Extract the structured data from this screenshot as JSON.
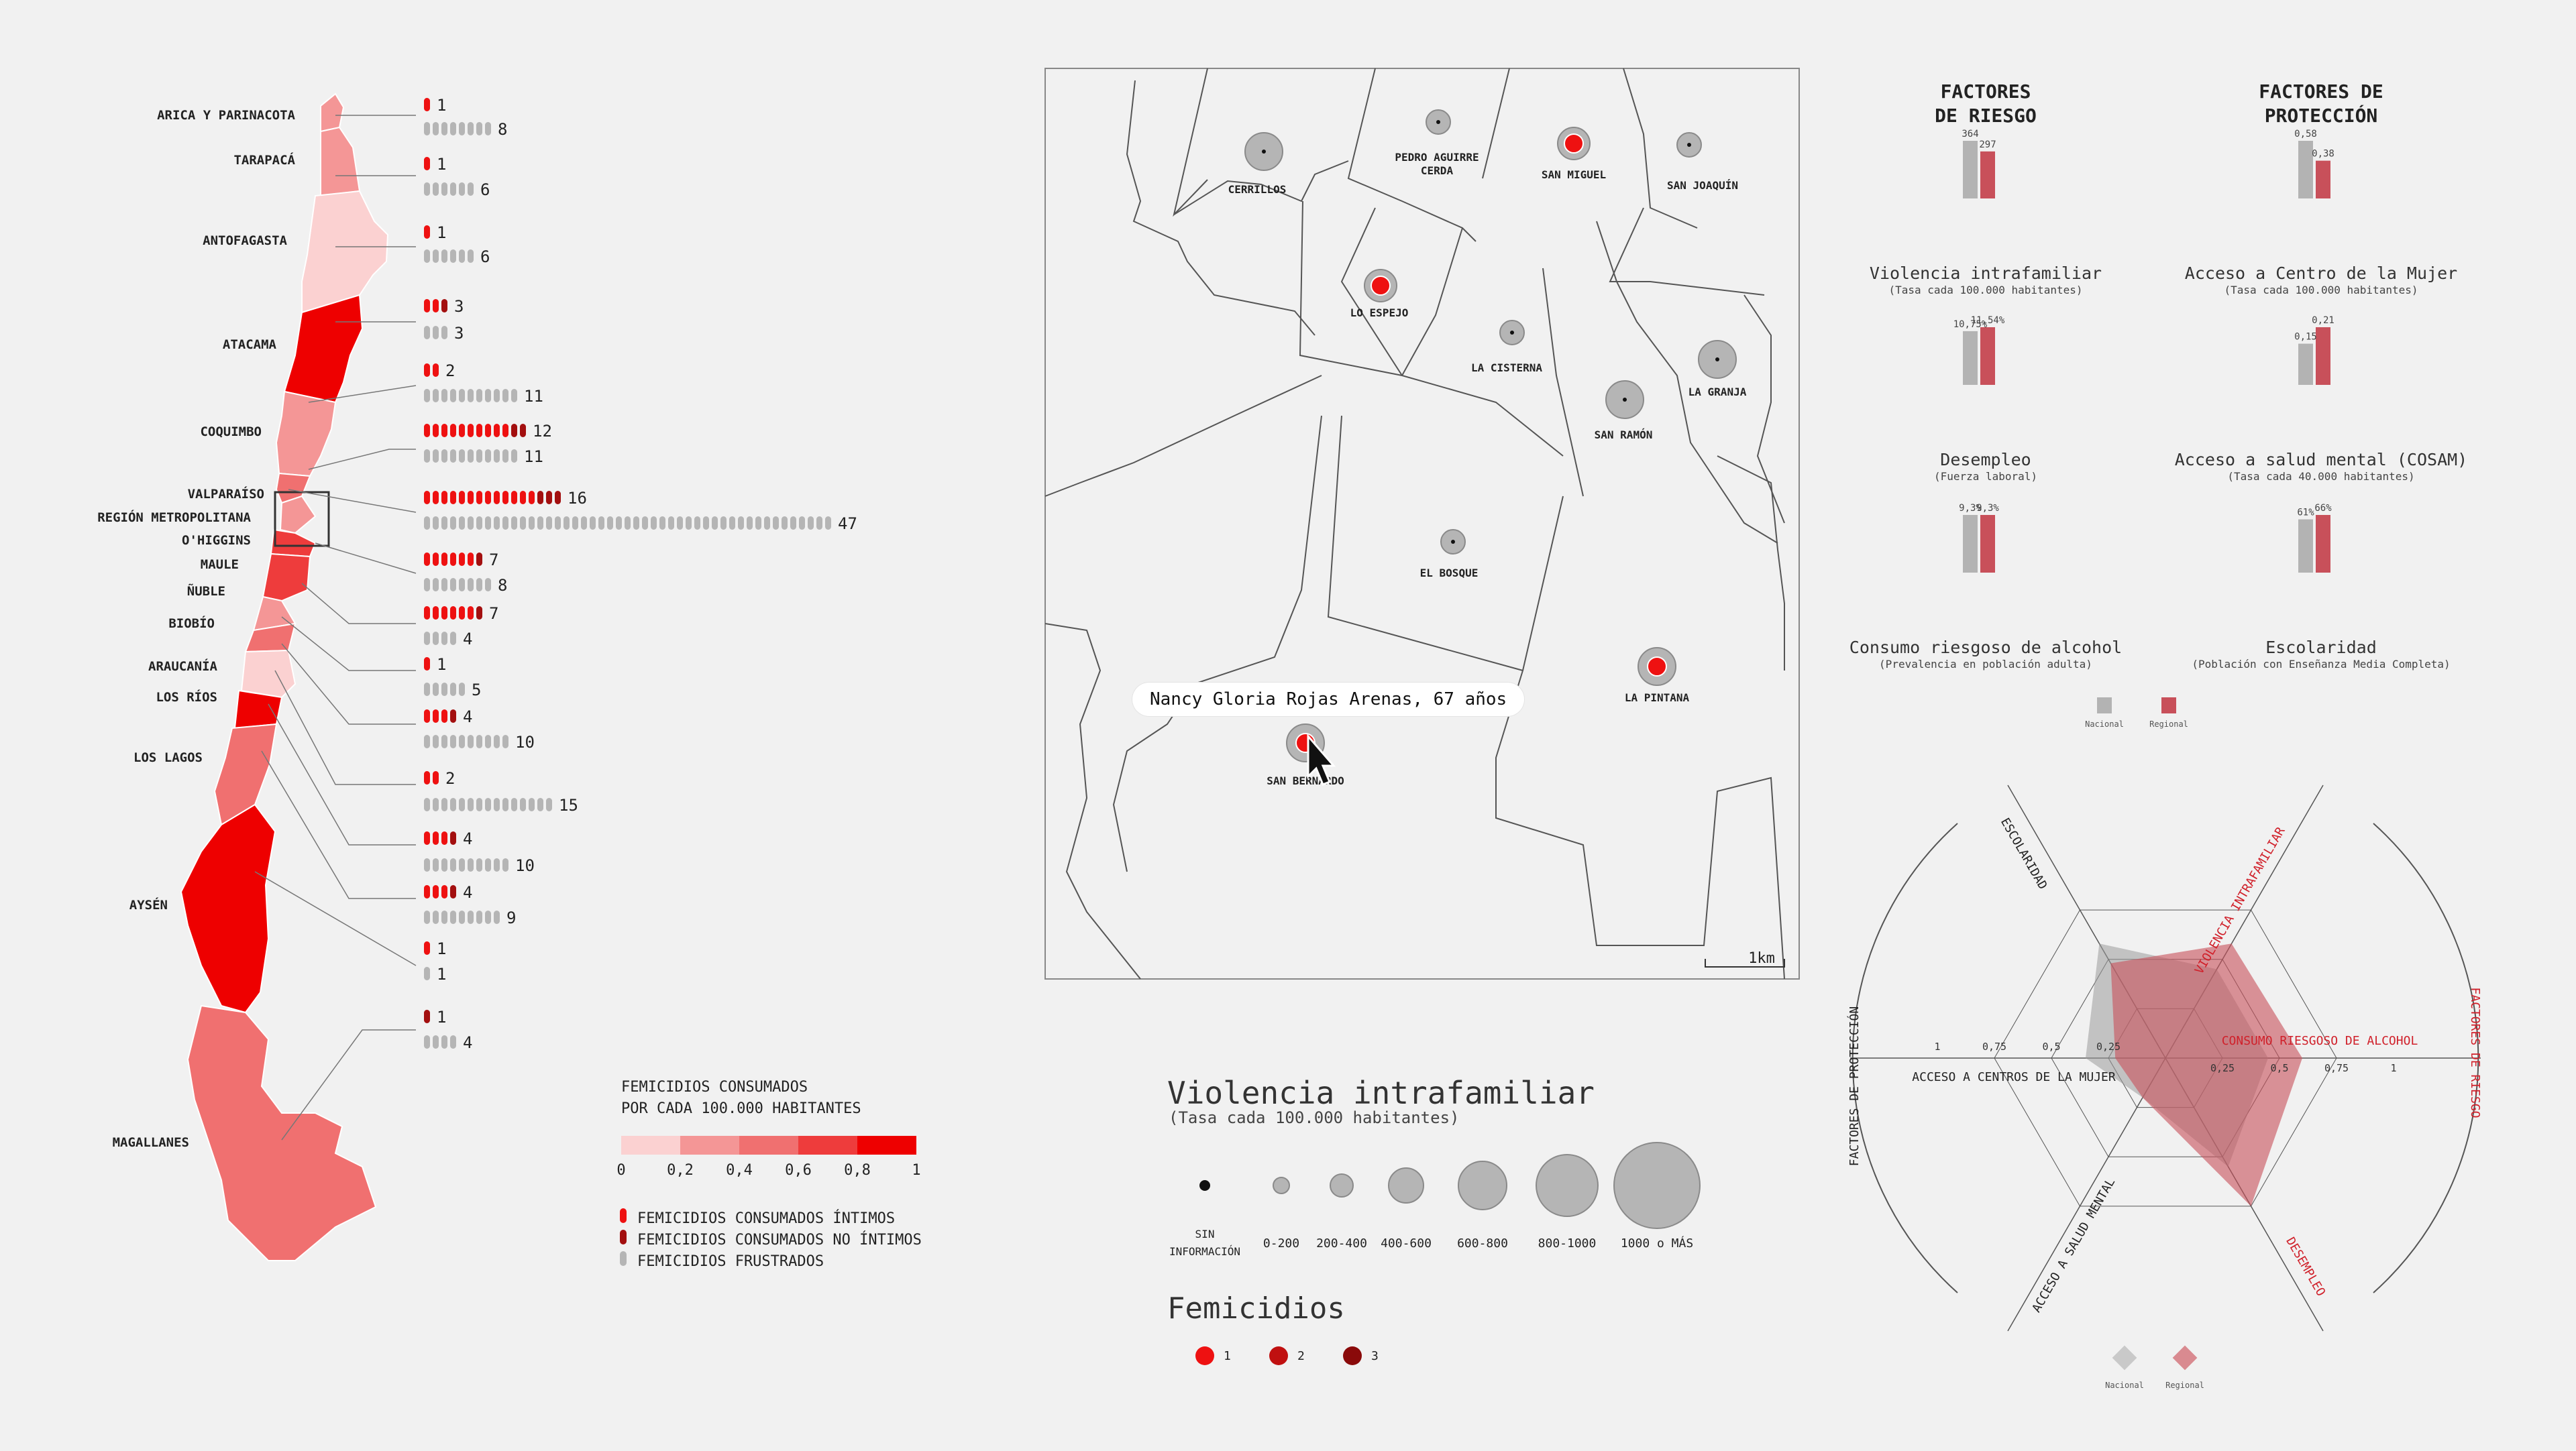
{
  "colors": {
    "accent": "#ee1111",
    "dark_red": "#a30f0f",
    "grey": "#b5b5b5",
    "regional": "#c8505a",
    "nacional": "#b3b3b3",
    "scale": [
      "#fbd1d1",
      "#f49696",
      "#f07070",
      "#ee3c3c",
      "#ee0000"
    ]
  },
  "regions": [
    {
      "name": "ARICA Y PARINACOTA",
      "intimos": 1,
      "no_intimos": 0,
      "frustrados": 8
    },
    {
      "name": "TARAPACÁ",
      "intimos": 1,
      "no_intimos": 0,
      "frustrados": 6
    },
    {
      "name": "ANTOFAGASTA",
      "intimos": 1,
      "no_intimos": 0,
      "frustrados": 6
    },
    {
      "name": "ATACAMA",
      "intimos": 2,
      "no_intimos": 1,
      "frustrados": 3
    },
    {
      "name": "COQUIMBO",
      "intimos": 2,
      "no_intimos": 0,
      "frustrados": 11
    },
    {
      "name": "VALPARAÍSO",
      "intimos": 10,
      "no_intimos": 2,
      "frustrados": 11
    },
    {
      "name": "REGIÓN METROPOLITANA",
      "intimos": 13,
      "no_intimos": 3,
      "frustrados": 47
    },
    {
      "name": "O'HIGGINS",
      "intimos": 6,
      "no_intimos": 1,
      "frustrados": 8
    },
    {
      "name": "MAULE",
      "intimos": 6,
      "no_intimos": 1,
      "frustrados": 4
    },
    {
      "name": "ÑUBLE",
      "intimos": 1,
      "no_intimos": 0,
      "frustrados": 5
    },
    {
      "name": "BIOBÍO",
      "intimos": 3,
      "no_intimos": 1,
      "frustrados": 10
    },
    {
      "name": "ARAUCANÍA",
      "intimos": 2,
      "no_intimos": 0,
      "frustrados": 15
    },
    {
      "name": "LOS RÍOS",
      "intimos": 3,
      "no_intimos": 1,
      "frustrados": 10
    },
    {
      "name": "LOS LAGOS",
      "intimos": 3,
      "no_intimos": 1,
      "frustrados": 9
    },
    {
      "name": "AYSÉN",
      "intimos": 1,
      "no_intimos": 0,
      "frustrados": 1
    },
    {
      "name": "MAGALLANES",
      "intimos": 0,
      "no_intimos": 1,
      "frustrados": 4
    }
  ],
  "region_labels": {
    "arica": "ARICA Y PARINACOTA",
    "tarapaca": "TARAPACÁ",
    "antofagasta": "ANTOFAGASTA",
    "atacama": "ATACAMA",
    "coquimbo": "COQUIMBO",
    "valparaiso": "VALPARAÍSO",
    "metropolitana": "REGIÓN METROPOLITANA",
    "ohiggins": "O'HIGGINS",
    "maule": "MAULE",
    "nuble": "ÑUBLE",
    "biobio": "BIOBÍO",
    "araucania": "ARAUCANÍA",
    "losrios": "LOS RÍOS",
    "loslagos": "LOS LAGOS",
    "aysen": "AYSÉN",
    "magallanes": "MAGALLANES"
  },
  "rate_legend": {
    "title_line1": "FEMICIDIOS CONSUMADOS",
    "title_line2": "POR CADA 100.000 HABITANTES",
    "ticks": [
      "0",
      "0,2",
      "0,4",
      "0,6",
      "0,8",
      "1"
    ]
  },
  "type_legend": {
    "intimos": "FEMICIDIOS CONSUMADOS ÍNTIMOS",
    "no_intimos": "FEMICIDIOS CONSUMADOS NO ÍNTIMOS",
    "frustrados": "FEMICIDIOS FRUSTRADOS"
  },
  "comunas": [
    {
      "name": "CERRILLOS",
      "size": "600-800",
      "femicidios": 0
    },
    {
      "name": "PEDRO AGUIRRE",
      "name2": "CERDA",
      "size": "200-400",
      "femicidios": 0
    },
    {
      "name": "SAN MIGUEL",
      "size": "400-600",
      "femicidios": 1
    },
    {
      "name": "SAN JOAQUÍN",
      "size": "200-400",
      "femicidios": 0
    },
    {
      "name": "LO ESPEJO",
      "size": "400-600",
      "femicidios": 1
    },
    {
      "name": "LA CISTERNA",
      "size": "200-400",
      "femicidios": 0
    },
    {
      "name": "SAN RAMÓN",
      "size": "600-800",
      "femicidios": 0
    },
    {
      "name": "LA GRANJA",
      "size": "600-800",
      "femicidios": 0
    },
    {
      "name": "EL BOSQUE",
      "size": "200-400",
      "femicidios": 0
    },
    {
      "name": "LA PINTANA",
      "size": "600-800",
      "femicidios": 1
    },
    {
      "name": "SAN BERNARDO",
      "size": "600-800",
      "femicidios": 1
    }
  ],
  "map": {
    "scale_label": "1km",
    "tooltip": "Nancy Gloria Rojas Arenas, 67 años"
  },
  "vif_legend": {
    "title": "Violencia intrafamiliar",
    "subtitle": "(Tasa cada 100.000 habitantes)",
    "categories": [
      "SIN INFORMACIÓN",
      "0-200",
      "200-400",
      "400-600",
      "600-800",
      "800-1000",
      "1000 o MÁS"
    ]
  },
  "fem_legend": {
    "title": "Femicidios",
    "counts": [
      "1",
      "2",
      "3"
    ]
  },
  "factors": {
    "riesgo_title": [
      "FACTORES",
      "DE RIESGO"
    ],
    "proteccion_title": [
      "FACTORES DE",
      "PROTECCIÓN"
    ],
    "charts": [
      {
        "title": "Violencia intrafamiliar",
        "subtitle": "(Tasa cada 100.000 habitantes)",
        "nacional": 364,
        "regional": 297,
        "label_nac": "364",
        "label_reg": "297"
      },
      {
        "title": "Acceso a Centro de la Mujer",
        "subtitle": "(Tasa cada 100.000 habitantes)",
        "nacional": 0.58,
        "regional": 0.38,
        "label_nac": "0,58",
        "label_reg": "0,38"
      },
      {
        "title": "Desempleo",
        "subtitle": "(Fuerza laboral)",
        "nacional": 10.75,
        "regional": 11.54,
        "label_nac": "10,75%",
        "label_reg": "11,54%"
      },
      {
        "title": "Acceso a salud mental (COSAM)",
        "subtitle": "(Tasa cada 40.000 habitantes)",
        "nacional": 0.15,
        "regional": 0.21,
        "label_nac": "0,15",
        "label_reg": "0,21"
      },
      {
        "title": "Consumo riesgoso de alcohol",
        "subtitle": "(Prevalencia en población adulta)",
        "nacional": 9.3,
        "regional": 9.3,
        "label_nac": "9,3%",
        "label_reg": "9,3%"
      },
      {
        "title": "Escolaridad",
        "subtitle": "(Población con Enseñanza Media Completa)",
        "nacional": 61,
        "regional": 66,
        "label_nac": "61%",
        "label_reg": "66%"
      }
    ],
    "legend": [
      "Nacional",
      "Regional"
    ]
  },
  "radar": {
    "axes": [
      "ESCOLARIDAD",
      "VIOLENCIA INTRAFAMILIAR",
      "CONSUMO RIESGOSO DE ALCOHOL",
      "DESEMPLEO",
      "ACCESO A SALUD MENTAL",
      "ACCESO A CENTROS DE LA MUJER"
    ],
    "ticks": [
      "0,25",
      "0,5",
      "0,75",
      "1"
    ],
    "side_left": "FACTORES DE PROTECCIÓN",
    "side_right": "FACTORES DE RIESGO",
    "nacional": [
      0.58,
      0.45,
      0.45,
      0.55,
      0.2,
      0.35
    ],
    "regional": [
      0.48,
      0.58,
      0.6,
      0.75,
      0.2,
      0.22
    ],
    "legend": [
      "Nacional",
      "Regional"
    ]
  }
}
